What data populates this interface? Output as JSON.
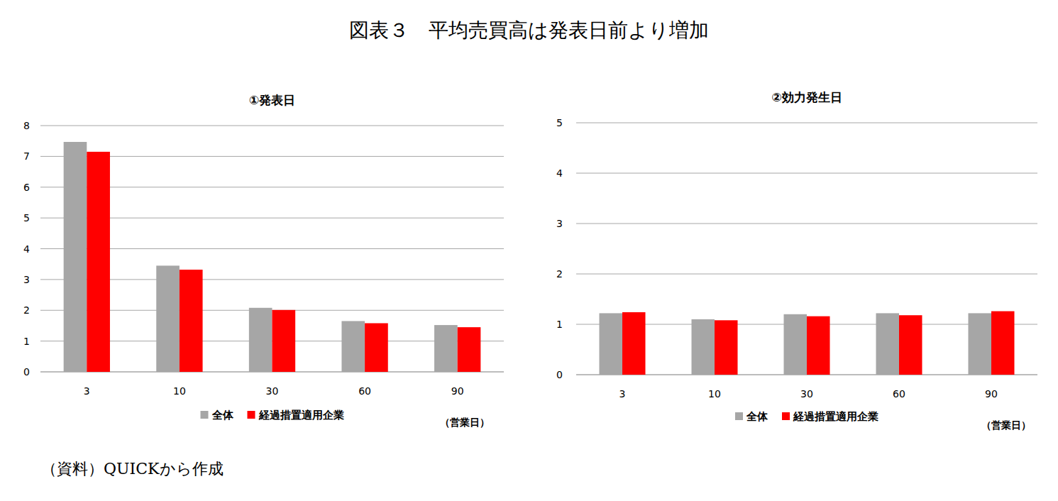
{
  "title": "図表３　平均売買高は発表日前より増加",
  "source": "（資料）QUICKから作成",
  "chart_data": [
    {
      "type": "bar",
      "title": "①発表日",
      "x_label": "（営業日）",
      "categories": [
        "3",
        "10",
        "30",
        "60",
        "90"
      ],
      "series": [
        {
          "name": "全体",
          "color": "#a6a6a6",
          "values": [
            7.47,
            3.45,
            2.08,
            1.65,
            1.52
          ]
        },
        {
          "name": "経過措置適用企業",
          "color": "#ff0000",
          "values": [
            7.15,
            3.32,
            2.01,
            1.58,
            1.45
          ]
        }
      ],
      "ylim": [
        0,
        8
      ],
      "yticks": [
        0,
        1,
        2,
        3,
        4,
        5,
        6,
        7,
        8
      ],
      "grid": true,
      "legend": "bottom"
    },
    {
      "type": "bar",
      "title": "②効力発生日",
      "x_label": "（営業日）",
      "categories": [
        "3",
        "10",
        "30",
        "60",
        "90"
      ],
      "series": [
        {
          "name": "全体",
          "color": "#a6a6a6",
          "values": [
            1.22,
            1.1,
            1.2,
            1.22,
            1.22
          ]
        },
        {
          "name": "経過措置適用企業",
          "color": "#ff0000",
          "values": [
            1.24,
            1.08,
            1.16,
            1.18,
            1.26
          ]
        }
      ],
      "ylim": [
        0,
        5
      ],
      "yticks": [
        0,
        1,
        2,
        3,
        4,
        5
      ],
      "grid": true,
      "legend": "bottom"
    }
  ]
}
